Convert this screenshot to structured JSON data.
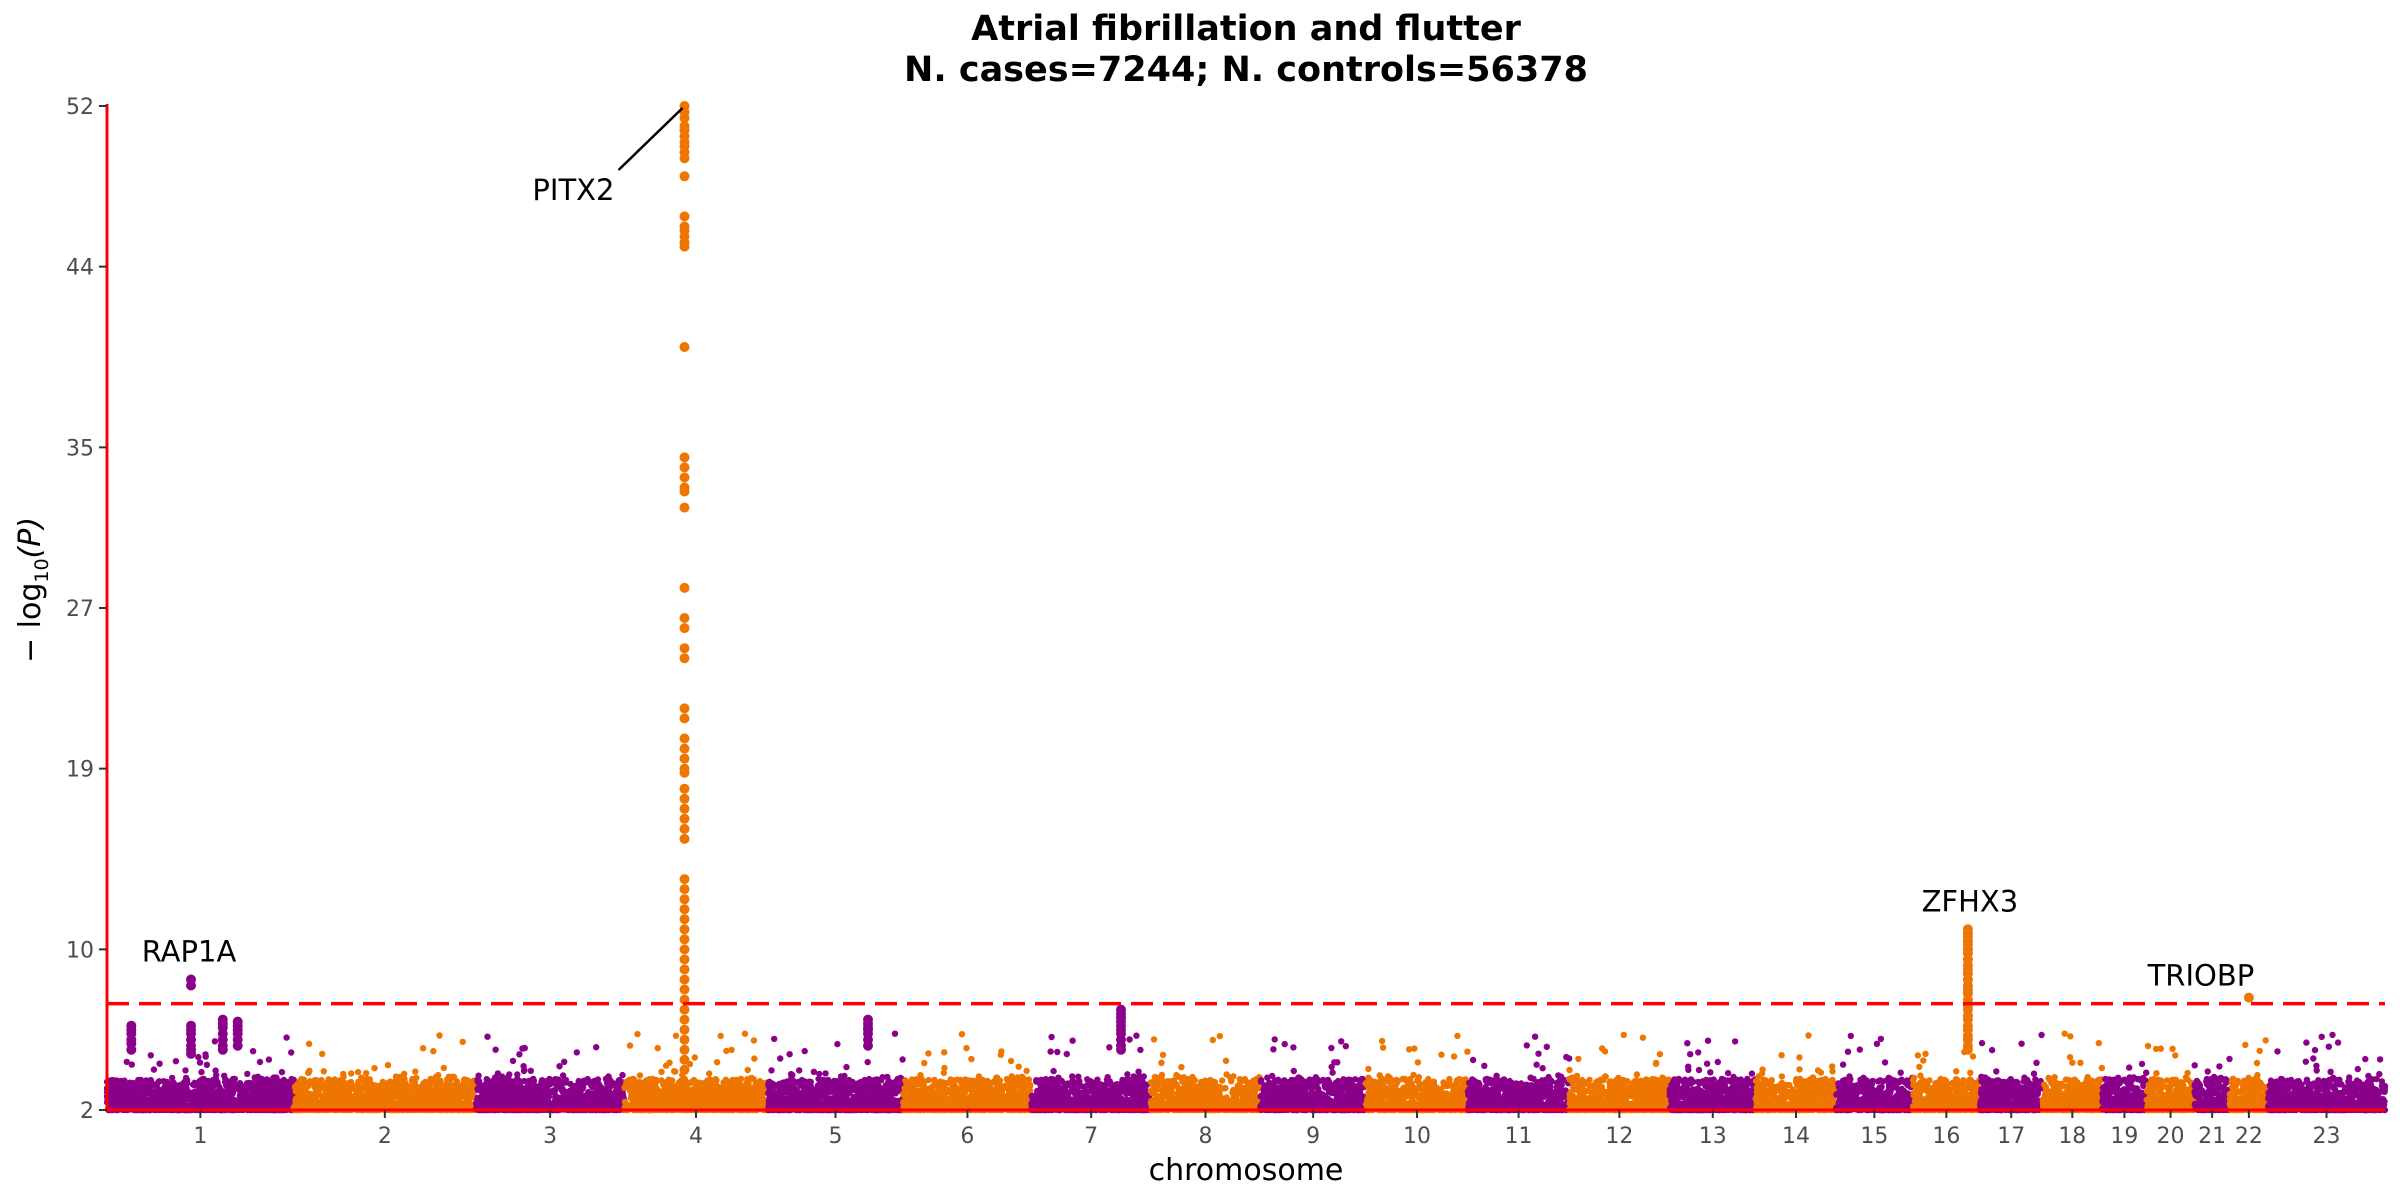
{
  "chart_data": {
    "type": "scatter",
    "subtype": "manhattan",
    "title": "Atrial fibrillation and flutter",
    "subtitle": "N. cases=7244; N. controls=56378",
    "xlabel": "chromosome",
    "ylabel": "− log10(P)",
    "ylabel_main": "− log",
    "ylabel_sub": "10",
    "ylabel_end": "(P)",
    "ylim": [
      2,
      52
    ],
    "yticks": [
      2,
      10,
      19,
      27,
      35,
      44,
      52
    ],
    "ytick_labels": [
      "2",
      "10",
      "19",
      "27",
      "35",
      "44",
      "52"
    ],
    "significance_line": 7.3,
    "grid": false,
    "legend": "none",
    "colors": {
      "odd_chromosome": "#8B008B",
      "even_chromosome": "#EE7600",
      "axis": "#FF0000",
      "threshold": "#FF0000"
    },
    "chromosomes": [
      "1",
      "2",
      "3",
      "4",
      "5",
      "6",
      "7",
      "8",
      "9",
      "10",
      "11",
      "12",
      "13",
      "14",
      "15",
      "16",
      "17",
      "18",
      "19",
      "20",
      "21",
      "22",
      "23"
    ],
    "chromosome_lengths": [
      249,
      243,
      198,
      191,
      181,
      171,
      159,
      146,
      141,
      136,
      135,
      134,
      115,
      107,
      102,
      90,
      83,
      80,
      59,
      64,
      47,
      51,
      156
    ],
    "annotated_hits": [
      {
        "gene": "PITX2",
        "chromosome": "4",
        "pos_fraction": 0.42,
        "p": 52
      },
      {
        "gene": "RAP1A",
        "chromosome": "1",
        "pos_fraction": 0.45,
        "p": 8.5
      },
      {
        "gene": "ZFHX3",
        "chromosome": "16",
        "pos_fraction": 0.82,
        "p": 11
      },
      {
        "gene": "TRIOBP",
        "chromosome": "22",
        "pos_fraction": 0.5,
        "p": 7.6
      }
    ],
    "peaks": [
      {
        "chromosome": "4",
        "pos_fraction": 0.42,
        "values": [
          52,
          51.7,
          51.4,
          51,
          50.8,
          50.5,
          50.2,
          50,
          49.7,
          49.4,
          48.5,
          46.5,
          46,
          45.8,
          45.5,
          45.2,
          45,
          40,
          34.5,
          34,
          33.5,
          33,
          32.8,
          32,
          28,
          26.5,
          26,
          25,
          24.5,
          22,
          21.5,
          20.5,
          20,
          19.5,
          19,
          18.8,
          18,
          17.5,
          17,
          16.5,
          16,
          15.5,
          13.5,
          13,
          12.5,
          12,
          11.5,
          11,
          10.5,
          10,
          9.5,
          9,
          8.5,
          8,
          7.5,
          7,
          6.5,
          6,
          5.5,
          5,
          4.5,
          4
        ]
      },
      {
        "chromosome": "16",
        "pos_fraction": 0.82,
        "values": [
          11,
          10.8,
          10.6,
          10.4,
          10.2,
          10,
          9.8,
          9.5,
          9.2,
          9,
          8.8,
          8.5,
          8.2,
          8,
          7.8,
          7.5,
          7.2,
          7,
          6.7,
          6.5,
          6.2,
          6,
          5.7,
          5.5,
          5.2,
          5
        ]
      },
      {
        "chromosome": "1",
        "pos_fraction": 0.45,
        "values": [
          8.5,
          8.2,
          6.2,
          6,
          5.8,
          5.5,
          5.2,
          5,
          4.8
        ]
      },
      {
        "chromosome": "1",
        "pos_fraction": 0.13,
        "values": [
          6.2,
          6,
          5.8,
          5.5,
          5.3,
          5
        ]
      },
      {
        "chromosome": "1",
        "pos_fraction": 0.62,
        "values": [
          6.5,
          6.3,
          6.1,
          5.8,
          5.5,
          5.2,
          5
        ]
      },
      {
        "chromosome": "1",
        "pos_fraction": 0.7,
        "values": [
          6.4,
          6.2,
          6,
          5.8,
          5.5,
          5.2
        ]
      },
      {
        "chromosome": "5",
        "pos_fraction": 0.74,
        "values": [
          6.5,
          6.3,
          6.1,
          6,
          5.8,
          5.5,
          5.2
        ]
      },
      {
        "chromosome": "7",
        "pos_fraction": 0.75,
        "values": [
          7,
          6.8,
          6.6,
          6.4,
          6.2,
          6,
          5.8,
          5.5,
          5.2,
          5
        ]
      },
      {
        "chromosome": "22",
        "pos_fraction": 0.5,
        "values": [
          7.6
        ]
      }
    ],
    "random_seed": 13
  },
  "labels": {
    "title": "Atrial fibrillation and flutter",
    "subtitle": "N. cases=7244; N. controls=56378",
    "xlabel": "chromosome"
  }
}
